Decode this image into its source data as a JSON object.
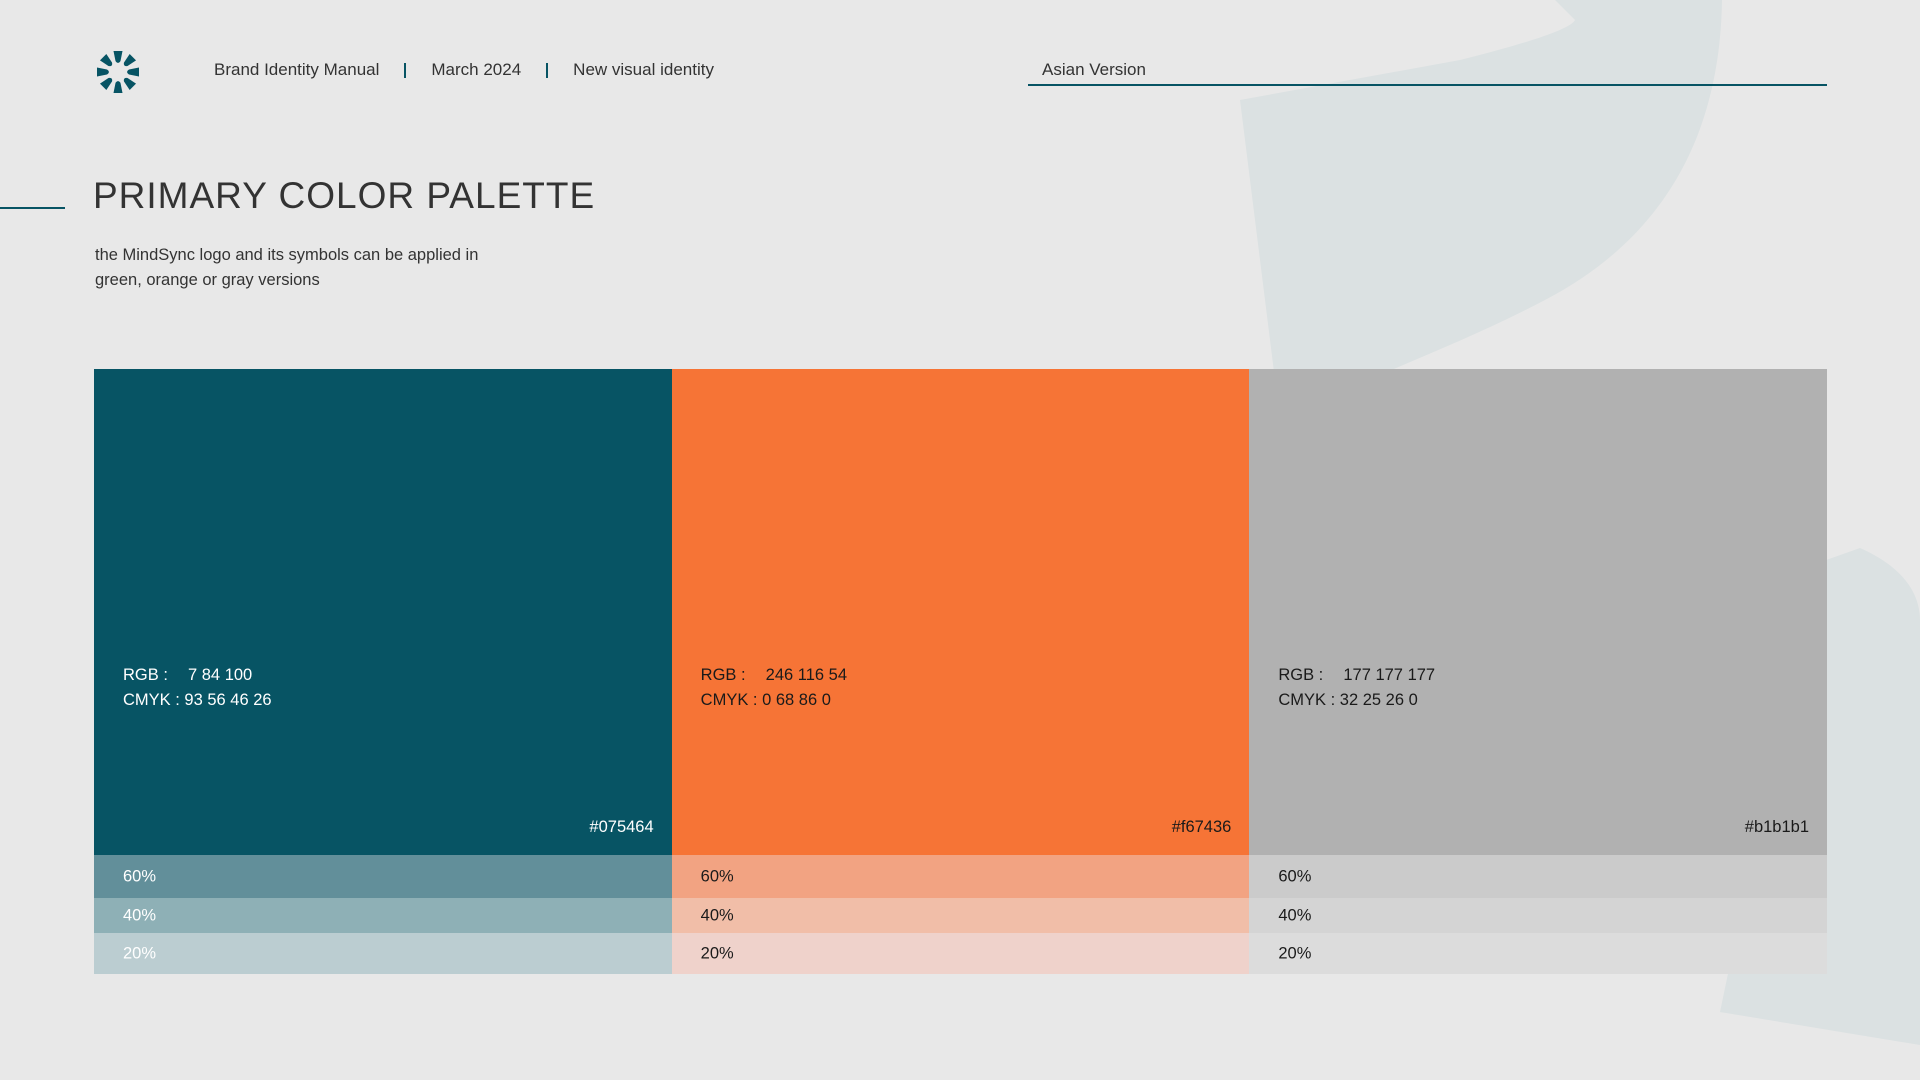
{
  "header": {
    "logo_icon": "burst-star-icon",
    "items": [
      "Brand Identity Manual",
      "March 2024",
      "New visual identity"
    ],
    "version_label": "Asian Version"
  },
  "page": {
    "title": "PRIMARY COLOR PALETTE",
    "subtitle_line1": "the MindSync logo and its symbols can be applied in",
    "subtitle_line2": "green, orange or gray versions"
  },
  "colors": {
    "accent": "#075464",
    "background": "#e8e8e8",
    "background_shape": "#dbe1e2"
  },
  "palette": [
    {
      "hex": "#075464",
      "rgb_label": "RGB :",
      "rgb_value": "7 84 100",
      "cmyk": "CMYK : 93 56 46 26",
      "text_color": "#ffffff",
      "tints": [
        {
          "label": "60%",
          "color": "#628f9a",
          "text_color": "#ffffff"
        },
        {
          "label": "40%",
          "color": "#8eb0b6",
          "text_color": "#ffffff"
        },
        {
          "label": "20%",
          "color": "#bbcdd1",
          "text_color": "#ffffff"
        }
      ]
    },
    {
      "hex": "#f67436",
      "rgb_label": "RGB :",
      "rgb_value": "246 116 54",
      "cmyk": "CMYK : 0 68 86 0",
      "text_color": "#1a1a1a",
      "tints": [
        {
          "label": "60%",
          "color": "#f2a382",
          "text_color": "#1a1a1a"
        },
        {
          "label": "40%",
          "color": "#f1bea8",
          "text_color": "#1a1a1a"
        },
        {
          "label": "20%",
          "color": "#efd2cb",
          "text_color": "#1a1a1a"
        }
      ]
    },
    {
      "hex": "#b1b1b1",
      "rgb_label": "RGB :",
      "rgb_value": "177 177 177",
      "cmyk": "CMYK : 32 25 26 0",
      "text_color": "#1a1a1a",
      "tints": [
        {
          "label": "60%",
          "color": "#cbcbcb",
          "text_color": "#1a1a1a"
        },
        {
          "label": "40%",
          "color": "#d4d4d4",
          "text_color": "#1a1a1a"
        },
        {
          "label": "20%",
          "color": "#dcdcdc",
          "text_color": "#1a1a1a"
        }
      ]
    }
  ]
}
